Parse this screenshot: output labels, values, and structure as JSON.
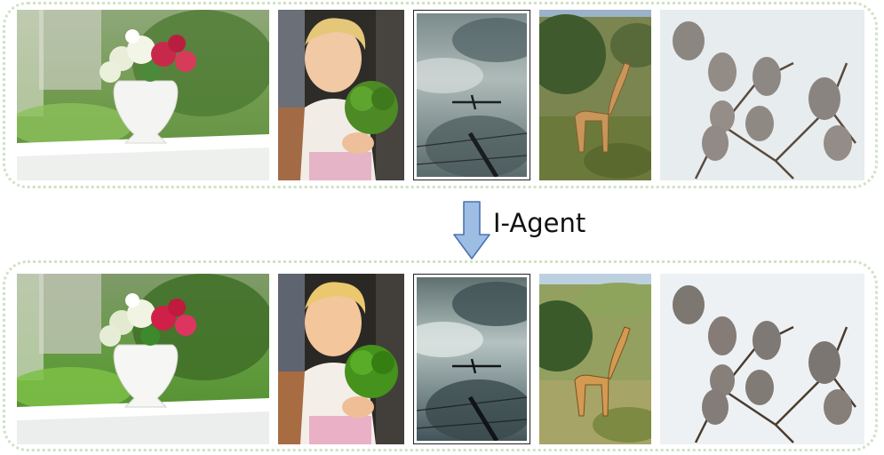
{
  "figure": {
    "arrow_label": "I-Agent",
    "colors": {
      "panel_border": "#cfe3c3",
      "arrow_fill": "#9dbde3",
      "arrow_stroke": "#4a74b0"
    }
  },
  "rows": [
    {
      "id": "before",
      "images": [
        {
          "subject": "vase-with-flowers-on-railing"
        },
        {
          "subject": "child-holding-broccoli"
        },
        {
          "subject": "airplane-in-cloudy-sky"
        },
        {
          "subject": "giraffe-in-grassland"
        },
        {
          "subject": "birds-on-branches"
        }
      ]
    },
    {
      "id": "after",
      "images": [
        {
          "subject": "vase-with-flowers-on-railing"
        },
        {
          "subject": "child-holding-broccoli"
        },
        {
          "subject": "airplane-in-cloudy-sky"
        },
        {
          "subject": "giraffe-in-grassland"
        },
        {
          "subject": "birds-on-branches"
        }
      ]
    }
  ]
}
